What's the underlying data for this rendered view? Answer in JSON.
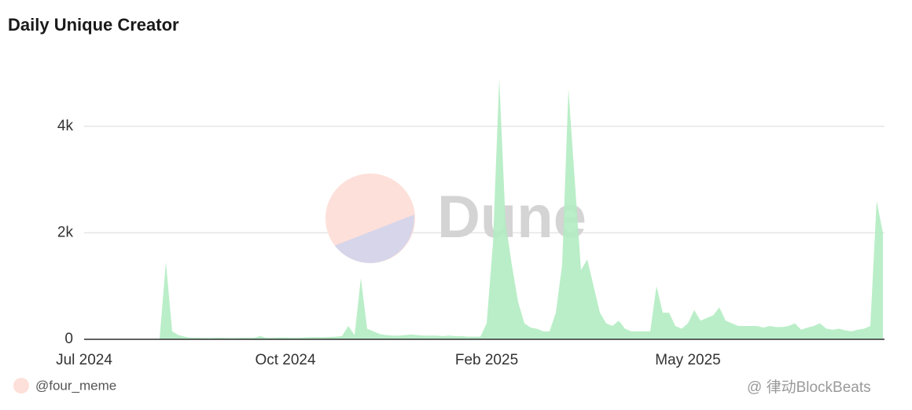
{
  "chart_data": {
    "type": "area",
    "title": "Daily Unique Creator",
    "values": [
      10,
      10,
      10,
      10,
      10,
      10,
      10,
      10,
      10,
      10,
      10,
      10,
      10,
      1450,
      150,
      80,
      50,
      30,
      30,
      25,
      25,
      30,
      30,
      25,
      25,
      30,
      30,
      30,
      60,
      30,
      30,
      35,
      35,
      30,
      30,
      35,
      40,
      40,
      40,
      45,
      50,
      60,
      250,
      80,
      1150,
      200,
      150,
      100,
      80,
      70,
      70,
      80,
      90,
      80,
      70,
      70,
      70,
      60,
      70,
      60,
      60,
      50,
      50,
      50,
      300,
      1800,
      4900,
      2200,
      1400,
      700,
      300,
      220,
      200,
      150,
      150,
      500,
      1400,
      4700,
      3000,
      1300,
      1500,
      1000,
      500,
      300,
      250,
      350,
      200,
      150,
      150,
      150,
      150,
      1000,
      500,
      500,
      250,
      200,
      300,
      550,
      350,
      400,
      450,
      600,
      350,
      300,
      250,
      250,
      250,
      250,
      220,
      250,
      230,
      230,
      250,
      300,
      180,
      220,
      250,
      300,
      200,
      180,
      200,
      170,
      150,
      180,
      200,
      250,
      2600,
      2000
    ],
    "color": "#b3ecc2",
    "xticks": [
      {
        "value": 0,
        "label": "Jul 2024"
      },
      {
        "value": 32,
        "label": "Oct 2024"
      },
      {
        "value": 64,
        "label": "Feb 2025"
      },
      {
        "value": 96,
        "label": "May 2025"
      }
    ],
    "ylim": [
      0,
      5000
    ],
    "yticks": [
      0,
      {
        "value": 2000,
        "label": "2k"
      },
      {
        "value": 4000,
        "label": "4k"
      }
    ],
    "grid": true
  },
  "watermark": "Dune",
  "credit": "@four_meme",
  "source_watermark": "@ 律动BlockBeats"
}
